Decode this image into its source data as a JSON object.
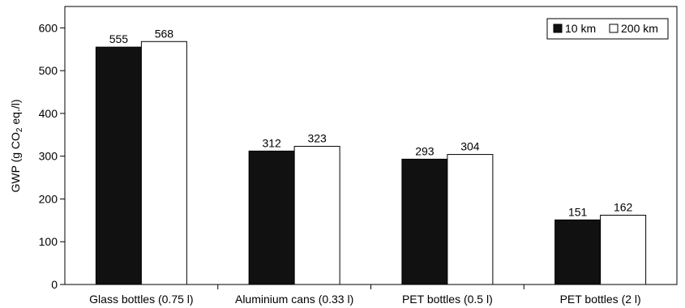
{
  "chart_data": {
    "type": "bar",
    "categories": [
      "Glass bottles (0.75 l)",
      "Aluminium cans (0.33 l)",
      "PET bottles (0.5 l)",
      "PET bottles (2 l)"
    ],
    "series": [
      {
        "name": "10 km",
        "values": [
          555,
          312,
          293,
          151
        ],
        "color": "#111111"
      },
      {
        "name": "200 km",
        "values": [
          568,
          323,
          304,
          162
        ],
        "color": "#ffffff"
      }
    ],
    "title": "",
    "xlabel": "",
    "ylabel": "GWP (g CO2 eq./l)",
    "ylabel_parts": {
      "pre": "GWP (g CO",
      "sub": "2",
      "post": " eq./l)"
    },
    "ylim": [
      0,
      650
    ],
    "yticks": [
      0,
      100,
      200,
      300,
      400,
      500,
      600
    ],
    "grid": false,
    "legend_position": "top-right",
    "data_labels": true
  }
}
